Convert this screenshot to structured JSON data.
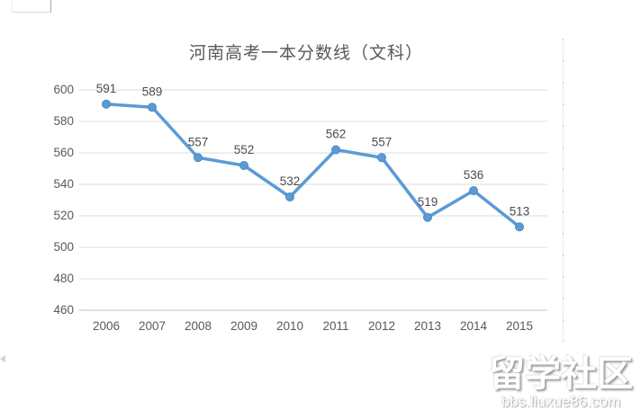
{
  "chart_data": {
    "type": "line",
    "title": "河南高考一本分数线（文科）",
    "categories": [
      "2006",
      "2007",
      "2008",
      "2009",
      "2010",
      "2011",
      "2012",
      "2013",
      "2014",
      "2015"
    ],
    "values": [
      591,
      589,
      557,
      552,
      532,
      562,
      557,
      519,
      536,
      513
    ],
    "xlabel": "",
    "ylabel": "",
    "ylim": [
      460,
      600
    ],
    "ytick_step": 20,
    "grid": true,
    "legend": "none",
    "data_labels": true,
    "marker": "circle",
    "colors": {
      "line": "#5B9BD5",
      "marker_stroke": "#4A89C7",
      "gridline": "#dedede",
      "axis_line": "#c0c0c0",
      "title_text": "#595959",
      "axis_text": "#595959",
      "data_label_text": "#4d4d4d"
    }
  },
  "watermark": {
    "title": "留学社区",
    "subtitle": "bbs.liuxue86.com"
  }
}
